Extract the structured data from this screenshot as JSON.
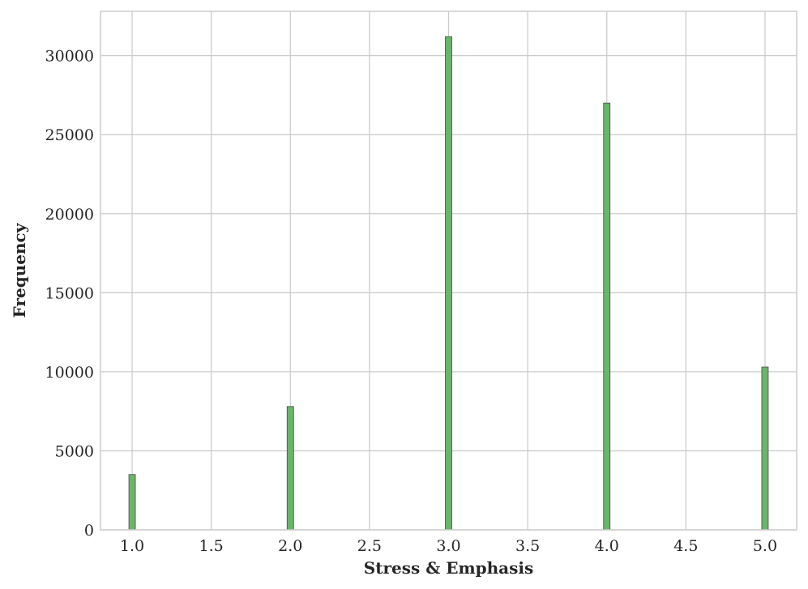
{
  "chart_data": {
    "type": "bar",
    "title": "",
    "xlabel": "Stress & Emphasis",
    "ylabel": "Frequency",
    "x": [
      1.0,
      2.0,
      3.0,
      4.0,
      5.0
    ],
    "values": [
      3500,
      7800,
      31200,
      27000,
      10300
    ],
    "xlim": [
      0.8,
      5.2
    ],
    "ylim": [
      0,
      32800
    ],
    "xticks": [
      "1.0",
      "1.5",
      "2.0",
      "2.5",
      "3.0",
      "3.5",
      "4.0",
      "4.5",
      "5.0"
    ],
    "yticks": [
      "0",
      "5000",
      "10000",
      "15000",
      "20000",
      "25000",
      "30000"
    ],
    "grid": true,
    "legend": "none",
    "bar_color": "#6ab56a",
    "bar_edge_color": "#4a4a4a",
    "grid_color": "#cccccc"
  }
}
